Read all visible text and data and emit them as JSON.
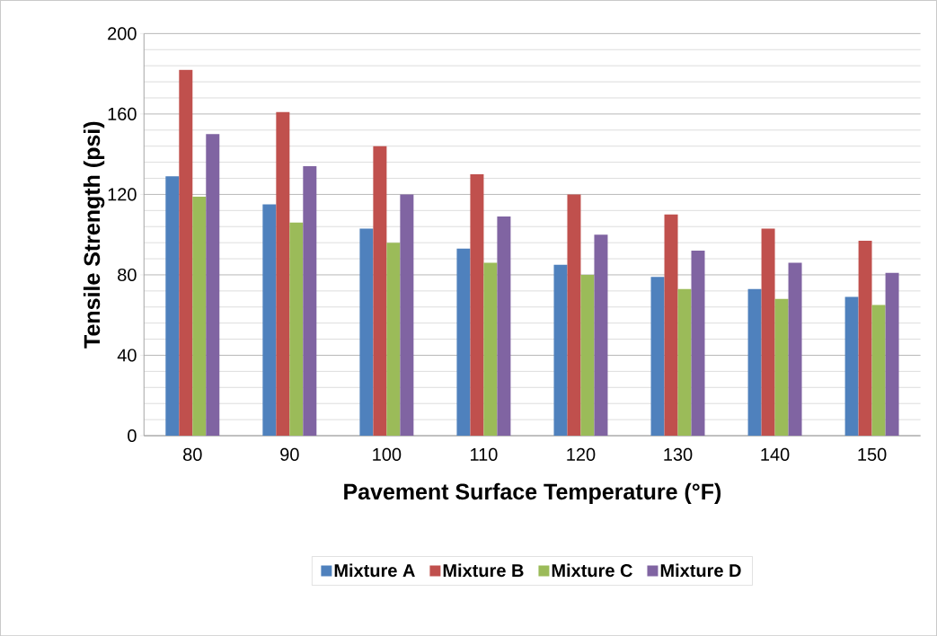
{
  "chart_data": {
    "type": "bar",
    "xlabel": "Pavement Surface Temperature (°F)",
    "ylabel": "Tensile Strength (psi)",
    "categories": [
      "80",
      "90",
      "100",
      "110",
      "120",
      "130",
      "140",
      "150"
    ],
    "series": [
      {
        "name": "Mixture A",
        "color": "#4f81bd",
        "values": [
          129,
          115,
          103,
          93,
          85,
          79,
          73,
          69
        ]
      },
      {
        "name": "Mixture B",
        "color": "#c0504d",
        "values": [
          182,
          161,
          144,
          130,
          120,
          110,
          103,
          97
        ]
      },
      {
        "name": "Mixture C",
        "color": "#9bbb59",
        "values": [
          119,
          106,
          96,
          86,
          80,
          73,
          68,
          65
        ]
      },
      {
        "name": "Mixture D",
        "color": "#8064a2",
        "values": [
          150,
          134,
          120,
          109,
          100,
          92,
          86,
          81
        ]
      }
    ],
    "ylim": [
      0,
      200
    ],
    "yticks": [
      0,
      40,
      80,
      120,
      160,
      200
    ],
    "grid": "y",
    "legend": "bottom"
  }
}
